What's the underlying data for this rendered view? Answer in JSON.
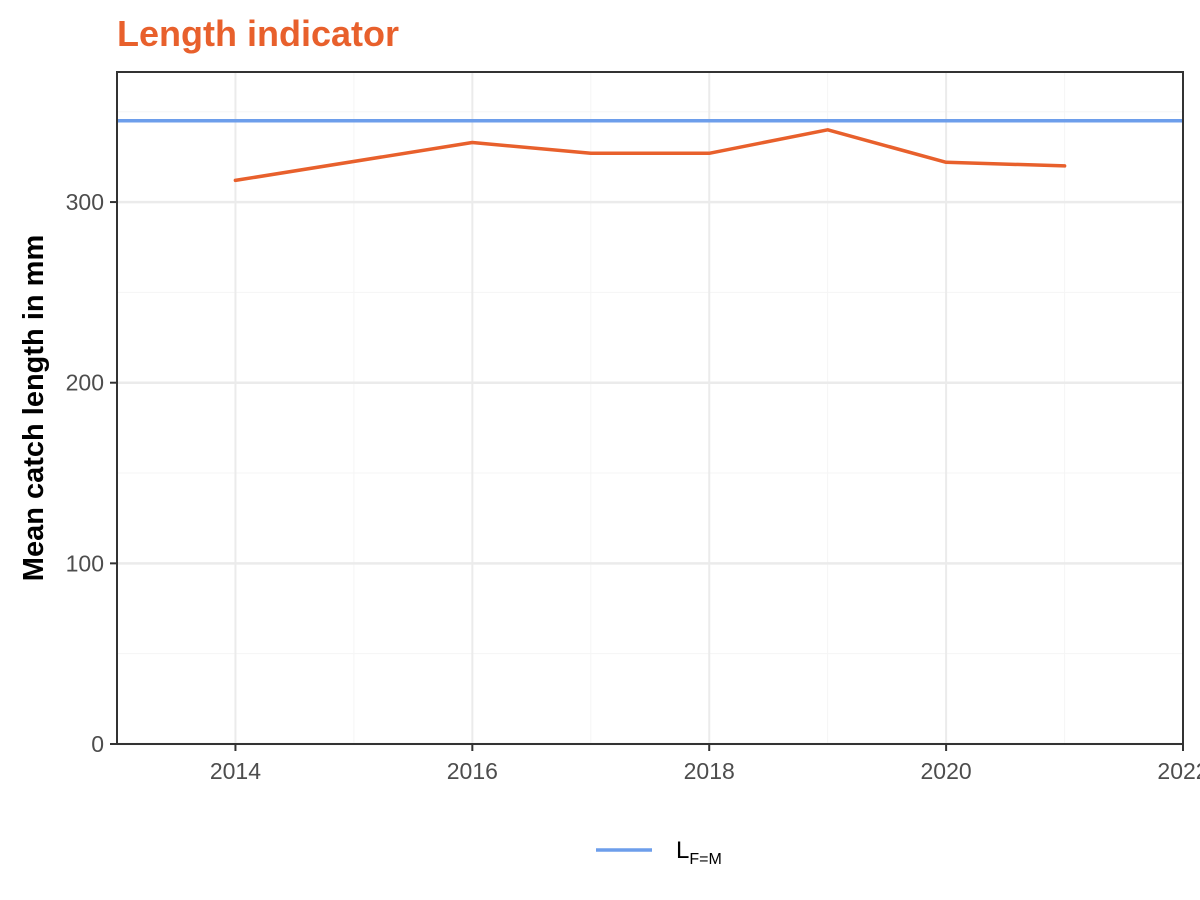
{
  "chart_data": {
    "type": "line",
    "title": "Length indicator",
    "xlabel": "",
    "ylabel": "Mean catch length in mm",
    "xlim": [
      2013,
      2022
    ],
    "ylim": [
      0,
      372
    ],
    "x_ticks": [
      2014,
      2016,
      2018,
      2020,
      2022
    ],
    "x_tick_labels": [
      "2014",
      "2016",
      "2018",
      "2020",
      "2022"
    ],
    "y_ticks": [
      0,
      100,
      200,
      300
    ],
    "y_tick_labels": [
      "0",
      "100",
      "200",
      "300"
    ],
    "grid": true,
    "series": [
      {
        "type": "line",
        "color": "#e8602c",
        "x": [
          2014,
          2016,
          2017,
          2018,
          2019,
          2020,
          2021
        ],
        "values": [
          312,
          333,
          327,
          327,
          340,
          322,
          320
        ]
      },
      {
        "name": "LF=M",
        "type": "hline",
        "color": "#6d9eeb",
        "value": 345
      }
    ],
    "legend": {
      "position": "bottom",
      "main": "L",
      "subscript": "F=M"
    },
    "colors": {
      "title": "#e8602c",
      "series": "#e8602c",
      "reference": "#6d9eeb",
      "grid_major": "#ebebeb",
      "grid_minor": "#f5f5f5",
      "axis": "#333333"
    }
  }
}
